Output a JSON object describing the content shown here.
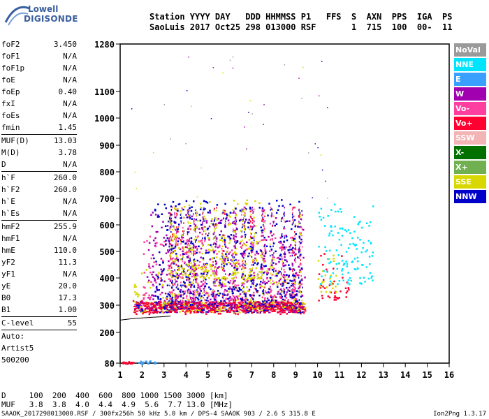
{
  "logo": {
    "line1": "Lowell",
    "line2": "DIGISONDE"
  },
  "header": {
    "row1": "Station YYYY DAY   DDD HHMMSS P1   FFS  S  AXN  PPS  IGA  PS",
    "row2": "SaoLuis 2017 Oct25 298 013000 RSF       1  715  100  00-  11"
  },
  "params": [
    {
      "label": "foF2",
      "value": "3.450"
    },
    {
      "label": "foF1",
      "value": "N/A"
    },
    {
      "label": "foF1p",
      "value": "N/A"
    },
    {
      "label": "foE",
      "value": "N/A"
    },
    {
      "label": "foEp",
      "value": "0.40"
    },
    {
      "label": "fxI",
      "value": "N/A"
    },
    {
      "label": "foEs",
      "value": "N/A"
    },
    {
      "label": "fmin",
      "value": "1.45"
    },
    {
      "sep": true
    },
    {
      "label": "MUF(D)",
      "value": "13.03"
    },
    {
      "label": "M(D)",
      "value": "3.78"
    },
    {
      "label": "D",
      "value": "N/A"
    },
    {
      "sep": true
    },
    {
      "label": "h`F",
      "value": "260.0"
    },
    {
      "label": "h`F2",
      "value": "260.0"
    },
    {
      "label": "h`E",
      "value": "N/A"
    },
    {
      "label": "h`Es",
      "value": "N/A"
    },
    {
      "sep": true
    },
    {
      "label": "hmF2",
      "value": "255.9"
    },
    {
      "label": "hmF1",
      "value": "N/A"
    },
    {
      "label": "hmE",
      "value": "110.0"
    },
    {
      "label": "yF2",
      "value": "11.3"
    },
    {
      "label": "yF1",
      "value": "N/A"
    },
    {
      "label": "yE",
      "value": "20.0"
    },
    {
      "label": "B0",
      "value": "17.3"
    },
    {
      "label": "B1",
      "value": "1.00"
    },
    {
      "sep": true
    },
    {
      "label": "C-level",
      "value": "55"
    },
    {
      "sep": true
    },
    {
      "plain": "Auto:"
    },
    {
      "plain": "Artist5"
    },
    {
      "plain": "500200"
    }
  ],
  "legend": [
    {
      "label": "NoVal",
      "color": "#9a9a9a"
    },
    {
      "label": "NNE",
      "color": "#00e5ff"
    },
    {
      "label": "E",
      "color": "#3aa0ff"
    },
    {
      "label": "W",
      "color": "#a000b0"
    },
    {
      "label": "Vo-",
      "color": "#ff3fa0"
    },
    {
      "label": "Vo+",
      "color": "#ff0030"
    },
    {
      "label": "SSW",
      "color": "#f2b4b4"
    },
    {
      "label": "X-",
      "color": "#007000"
    },
    {
      "label": "X+",
      "color": "#70b050"
    },
    {
      "label": "SSE",
      "color": "#d8d800"
    },
    {
      "label": "NNW",
      "color": "#0000c8"
    }
  ],
  "bottom": {
    "row1": "D     100  200  400  600  800 1000 1500 3000 [km]",
    "row2": "MUF   3.8  3.8  4.0  4.4  4.9  5.6  7.7 13.0 [MHz]"
  },
  "footer": "SAAOK_2017298013000.RSF / 300fx256h 50 kHz 5.0 km / DPS-4 SAAOK 903 / 2.6 S 315.8 E",
  "footer_right": "Ion2Png 1.3.17",
  "chart_data": {
    "type": "scatter",
    "title": "",
    "xlabel": "",
    "ylabel": "",
    "x_axis": {
      "min": 1,
      "max": 16,
      "ticks": [
        1,
        2,
        3,
        4,
        5,
        6,
        7,
        8,
        9,
        10,
        11,
        12,
        13,
        14,
        15,
        16
      ]
    },
    "y_axis": {
      "min": 80,
      "max": 1280,
      "ticks": [
        80,
        200,
        300,
        400,
        500,
        600,
        700,
        800,
        900,
        1000,
        1100,
        1280
      ],
      "scale": "nonlinear"
    },
    "grid": false,
    "trace_curve": [
      [
        1,
        245
      ],
      [
        1.5,
        250
      ],
      [
        2,
        253
      ],
      [
        2.5,
        256
      ],
      [
        3,
        258
      ],
      [
        3.3,
        260
      ]
    ],
    "clusters": [
      {
        "series": "Vo+",
        "x": [
          1.5,
          9.4
        ],
        "y": [
          270,
          330
        ]
      },
      {
        "series": "SSE",
        "x": [
          1.6,
          9.2
        ],
        "y": [
          300,
          440
        ]
      },
      {
        "series": "W",
        "x": [
          2.2,
          9.4
        ],
        "y": [
          290,
          650
        ]
      },
      {
        "series": "Vo-",
        "x": [
          2.0,
          9.3
        ],
        "y": [
          300,
          560
        ]
      },
      {
        "series": "NNW",
        "x": [
          2.5,
          9.3
        ],
        "y": [
          300,
          700
        ]
      },
      {
        "series": "SSE",
        "x": [
          3.2,
          7.5
        ],
        "y": [
          400,
          700
        ]
      },
      {
        "series": "Vo+",
        "x": [
          10.0,
          11.4
        ],
        "y": [
          320,
          500
        ]
      },
      {
        "series": "SSE",
        "x": [
          10.0,
          11.0
        ],
        "y": [
          350,
          500
        ]
      },
      {
        "series": "NNE",
        "x": [
          10.0,
          12.5
        ],
        "y": [
          380,
          680
        ]
      },
      {
        "series": "E",
        "x": [
          1.8,
          2.6
        ],
        "y": [
          80,
          95
        ]
      },
      {
        "series": "Vo+",
        "x": [
          1.1,
          1.6
        ],
        "y": [
          80,
          88
        ]
      }
    ]
  }
}
